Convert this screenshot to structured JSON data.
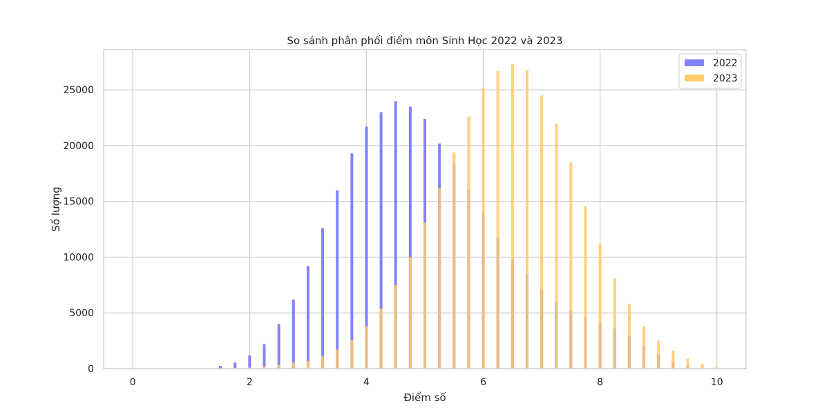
{
  "chart_data": {
    "type": "bar",
    "title": "So sánh phân phối điểm môn Sinh Học 2022 và 2023",
    "xlabel": "Điểm số",
    "ylabel": "Số lượng",
    "xlim": [
      -0.5,
      10.5
    ],
    "ylim": [
      0,
      28600
    ],
    "xticks": [
      0,
      2,
      4,
      6,
      8,
      10
    ],
    "yticks": [
      0,
      5000,
      10000,
      15000,
      20000,
      25000
    ],
    "grid": true,
    "legend_position": "top-right",
    "series": [
      {
        "name": "2022",
        "color": "#7b7bff",
        "x": [
          1.5,
          1.75,
          2.0,
          2.25,
          2.5,
          2.75,
          3.0,
          3.25,
          3.5,
          3.75,
          4.0,
          4.25,
          4.5,
          4.75,
          5.0,
          5.25,
          5.5,
          5.75,
          6.0,
          6.25,
          6.5,
          6.75,
          7.0,
          7.25,
          7.5,
          7.75,
          8.0,
          8.25,
          8.5,
          8.75,
          9.0,
          9.25,
          9.5
        ],
        "values": [
          250,
          550,
          1200,
          2200,
          4000,
          6200,
          9200,
          12600,
          16000,
          19300,
          21700,
          23000,
          24000,
          23500,
          22400,
          20200,
          18400,
          16100,
          14000,
          11700,
          9800,
          8500,
          7100,
          6000,
          5200,
          4600,
          4100,
          3600,
          2900,
          2100,
          1250,
          600,
          250
        ]
      },
      {
        "name": "2023",
        "color": "#ffc966",
        "x": [
          1.5,
          1.75,
          2.0,
          2.25,
          2.5,
          2.75,
          3.0,
          3.25,
          3.5,
          3.75,
          4.0,
          4.25,
          4.5,
          4.75,
          5.0,
          5.25,
          5.5,
          5.75,
          6.0,
          6.25,
          6.5,
          6.75,
          7.0,
          7.25,
          7.5,
          7.75,
          8.0,
          8.25,
          8.5,
          8.75,
          9.0,
          9.25,
          9.5,
          9.75,
          10.0
        ],
        "values": [
          50,
          60,
          100,
          200,
          350,
          550,
          700,
          1100,
          1700,
          2600,
          3800,
          5400,
          7500,
          10000,
          13100,
          16200,
          19400,
          22600,
          25200,
          26700,
          27300,
          26800,
          24500,
          22000,
          18500,
          14600,
          11200,
          8100,
          5800,
          3800,
          2500,
          1600,
          900,
          450,
          150
        ]
      }
    ]
  }
}
